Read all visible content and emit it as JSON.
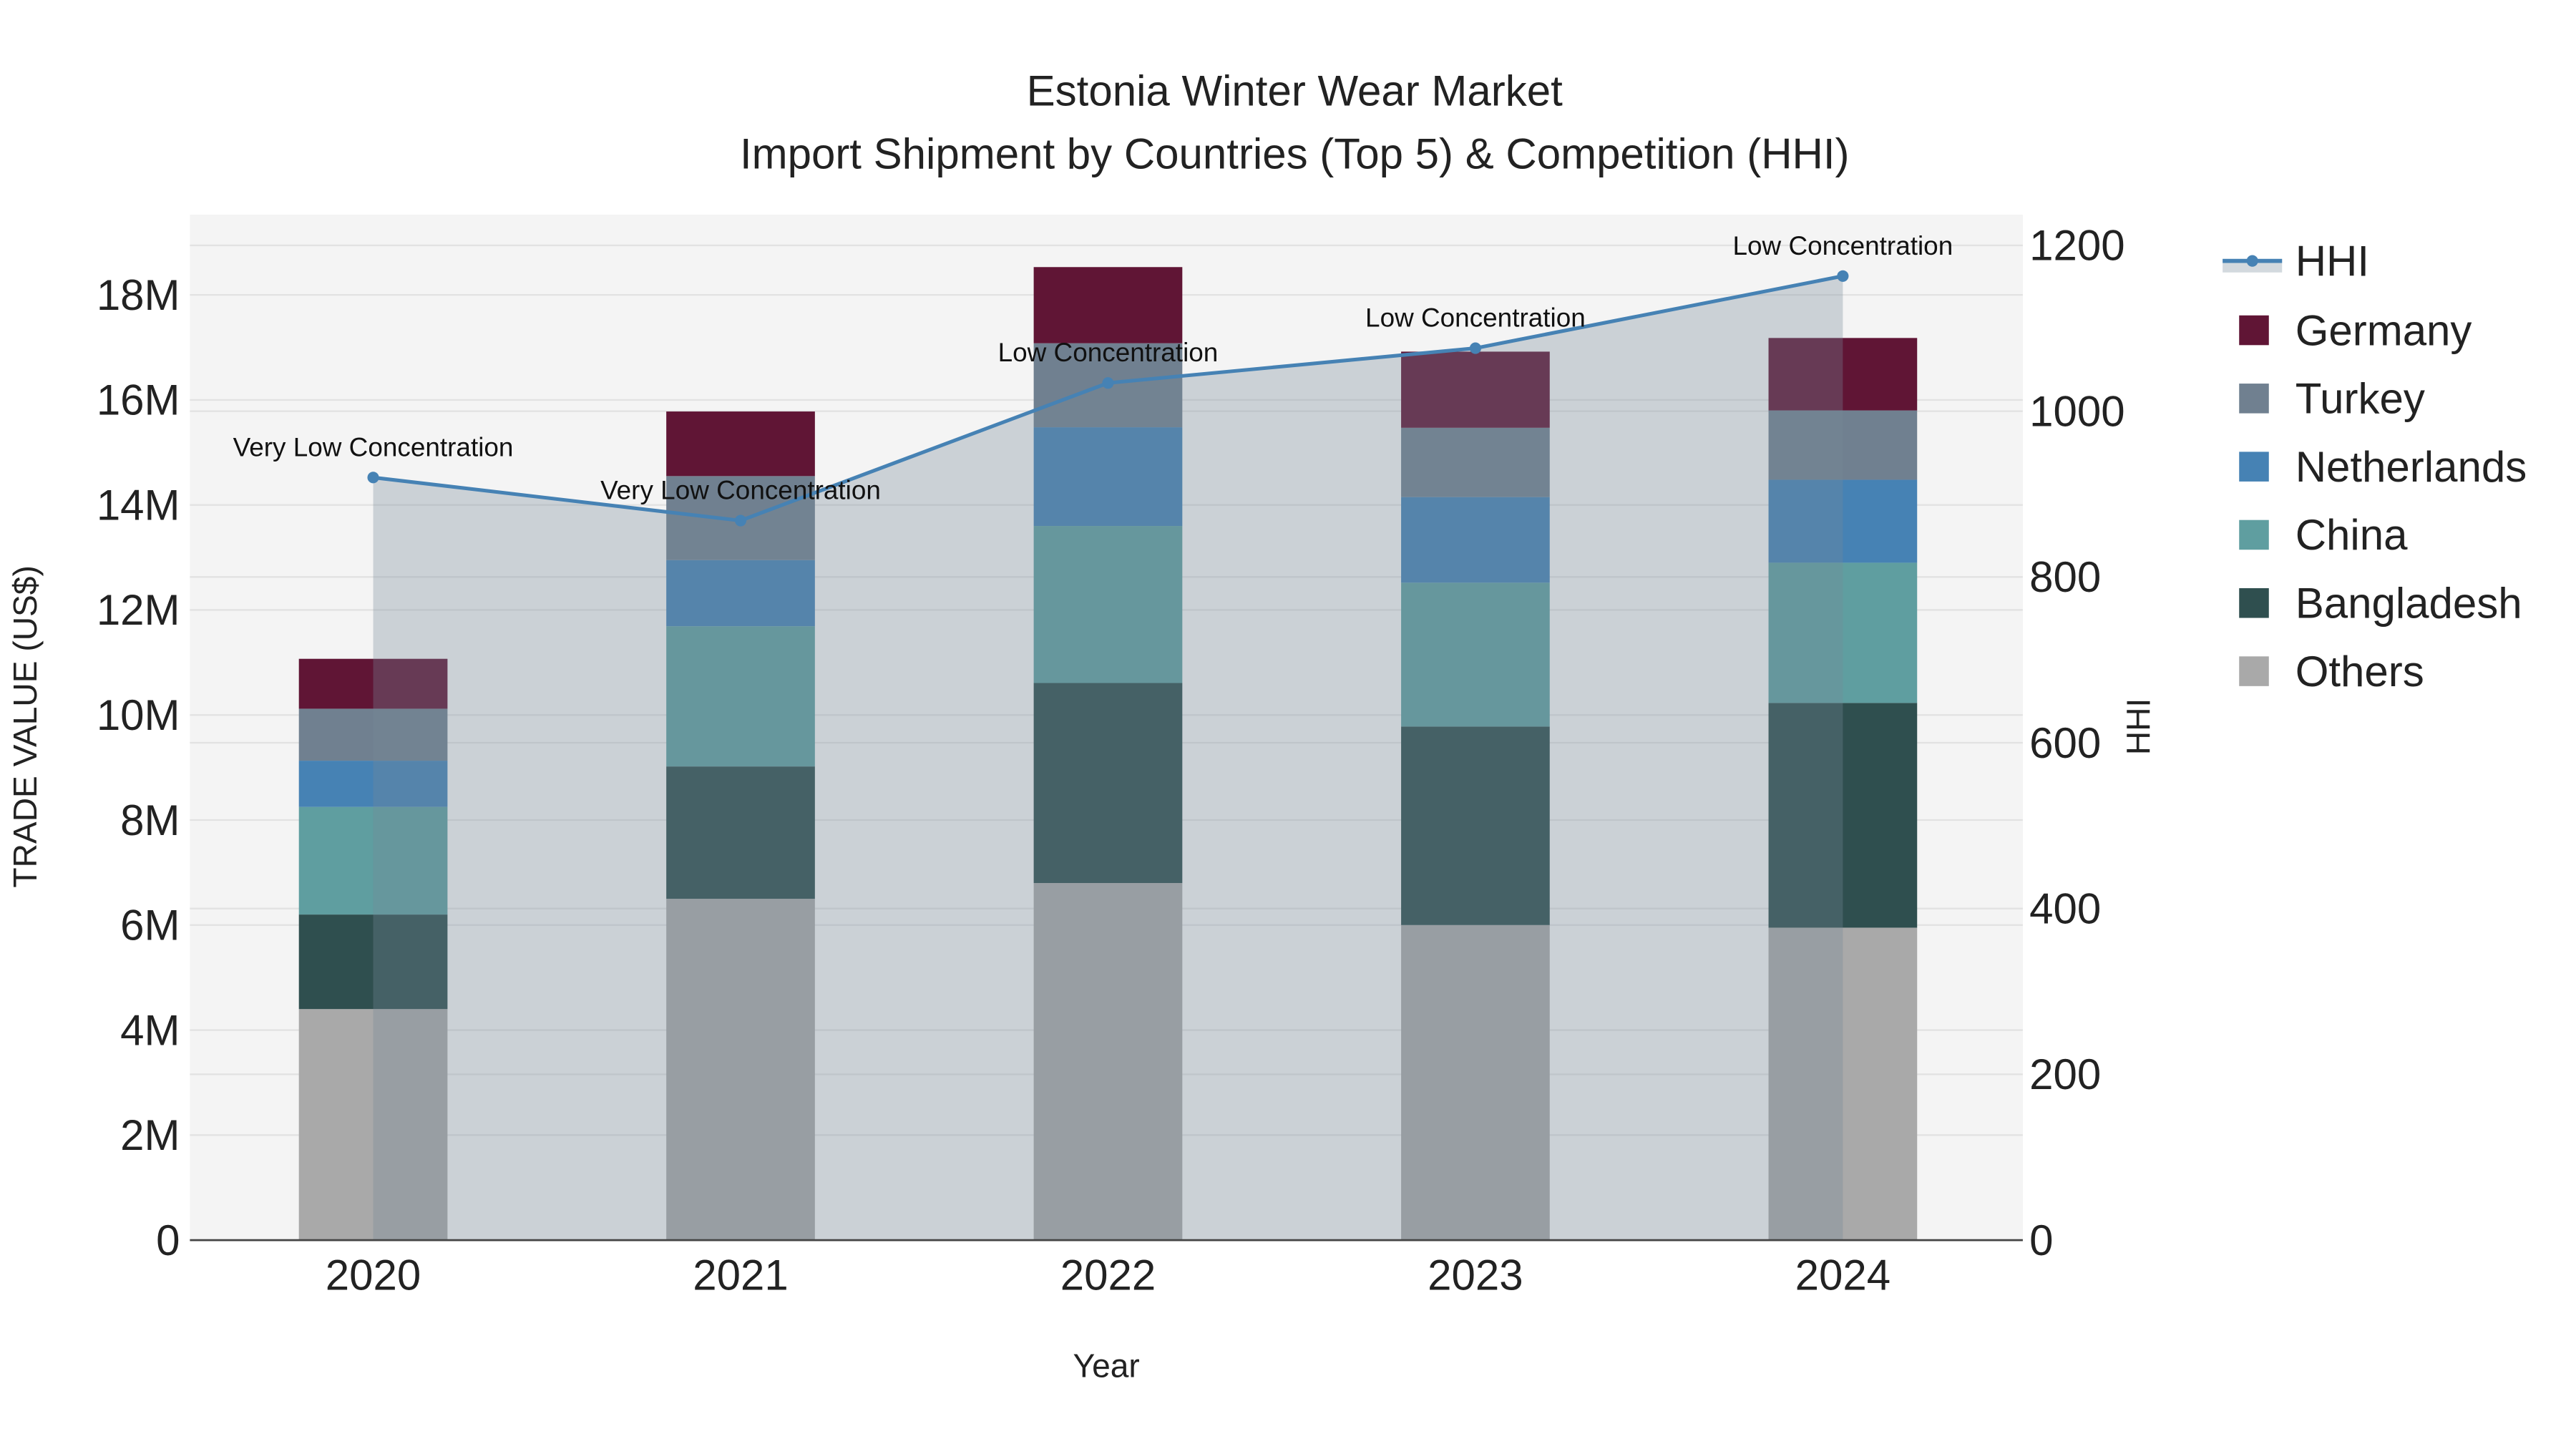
{
  "chart_data": {
    "type": "bar",
    "title": "Estonia Winter Wear Market",
    "subtitle": "Import Shipment by Countries (Top 5) & Competition (HHI)",
    "xlabel": "Year",
    "ylabel": "TRADE VALUE (US$)",
    "y2label": "HHI",
    "categories": [
      "2020",
      "2021",
      "2022",
      "2023",
      "2024"
    ],
    "ylim": [
      0,
      19000000
    ],
    "y2lim": [
      0,
      1240
    ],
    "yticks": [
      0,
      2000000,
      4000000,
      6000000,
      8000000,
      10000000,
      12000000,
      14000000,
      16000000,
      18000000
    ],
    "ytick_labels": [
      "0",
      "2M",
      "4M",
      "6M",
      "8M",
      "10M",
      "12M",
      "14M",
      "16M",
      "18M"
    ],
    "y2ticks": [
      0,
      200,
      400,
      600,
      800,
      1000,
      1200
    ],
    "y2tick_labels": [
      "0",
      "200",
      "400",
      "600",
      "800",
      "1000",
      "1200"
    ],
    "stacked": true,
    "series": [
      {
        "name": "Others",
        "color": "#a9a9a9",
        "values": [
          4400000,
          6500000,
          6800000,
          6000000,
          5950000
        ]
      },
      {
        "name": "Bangladesh",
        "color": "#2f4f4f",
        "values": [
          1800000,
          2520000,
          3810000,
          3780000,
          4280000
        ]
      },
      {
        "name": "China",
        "color": "#5f9ea0",
        "values": [
          2050000,
          2670000,
          2990000,
          2740000,
          2670000
        ]
      },
      {
        "name": "Netherlands",
        "color": "#4682b4",
        "values": [
          880000,
          1260000,
          1880000,
          1630000,
          1580000
        ]
      },
      {
        "name": "Turkey",
        "color": "#708090",
        "values": [
          990000,
          1600000,
          1600000,
          1320000,
          1320000
        ]
      },
      {
        "name": "Germany",
        "color": "#601535",
        "values": [
          950000,
          1230000,
          1450000,
          1450000,
          1380000
        ]
      }
    ],
    "hhi": {
      "name": "HHI",
      "color": "#4682b4",
      "values": [
        920,
        868,
        1034,
        1076,
        1163
      ],
      "annotations": [
        "Very Low Concentration",
        "Very Low Concentration",
        "Low Concentration",
        "Low Concentration",
        "Low Concentration"
      ]
    },
    "legend": [
      "HHI",
      "Germany",
      "Turkey",
      "Netherlands",
      "China",
      "Bangladesh",
      "Others"
    ],
    "legend_position": "right",
    "grid": true
  }
}
